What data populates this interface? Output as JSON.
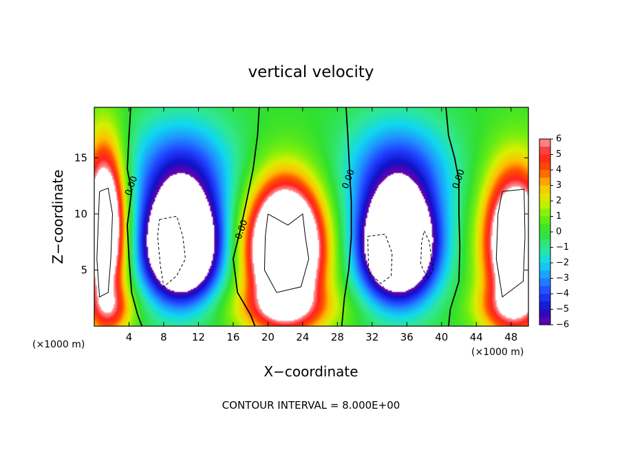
{
  "chart_data": {
    "type": "heatmap",
    "title": "vertical velocity",
    "xlabel": "X−coordinate",
    "ylabel": "Z−coordinate",
    "x_unit": "(×1000 m)",
    "x_unit_right": "(×1000 m)",
    "footer": "CONTOUR INTERVAL = 8.000E+00",
    "xlim": [
      0,
      50
    ],
    "ylim": [
      0,
      19.5
    ],
    "x_ticks": [
      4,
      8,
      12,
      16,
      20,
      24,
      28,
      32,
      36,
      40,
      44,
      48
    ],
    "x_tick_labels": [
      "4",
      "8",
      "12",
      "16",
      "20",
      "24",
      "28",
      "32",
      "36",
      "40",
      "44",
      "48"
    ],
    "y_ticks": [
      5,
      10,
      15
    ],
    "y_tick_labels": [
      "5",
      "10",
      "15"
    ],
    "colorbar": {
      "min": -6,
      "max": 6,
      "ticks": [
        6,
        5,
        4,
        3,
        2,
        1,
        0,
        -1,
        -2,
        -3,
        -4,
        -5,
        -6
      ],
      "tick_labels": [
        "6",
        "5",
        "4",
        "3",
        "2",
        "1",
        "0",
        "−1",
        "−2",
        "−3",
        "−4",
        "−5",
        "−6"
      ],
      "over_color": "#ffffff",
      "under_color": "#ffffff",
      "stops": [
        {
          "v": -6,
          "color": "#7000a8"
        },
        {
          "v": -5,
          "color": "#1010c8"
        },
        {
          "v": -4,
          "color": "#2040ff"
        },
        {
          "v": -3,
          "color": "#2090ff"
        },
        {
          "v": -2,
          "color": "#10d8f0"
        },
        {
          "v": -1,
          "color": "#30e890"
        },
        {
          "v": 0,
          "color": "#30e030"
        },
        {
          "v": 1,
          "color": "#70ee10"
        },
        {
          "v": 2,
          "color": "#d8f000"
        },
        {
          "v": 3,
          "color": "#ffc000"
        },
        {
          "v": 4,
          "color": "#ff5000"
        },
        {
          "v": 5,
          "color": "#ff2020"
        },
        {
          "v": 6,
          "color": "#ffa0a0"
        }
      ]
    },
    "contour_labels": [
      {
        "text": "0.00",
        "x": 4.3,
        "z": 12.5
      },
      {
        "text": "0.00",
        "x": 17.0,
        "z": 8.6
      },
      {
        "text": "0.00",
        "x": 29.3,
        "z": 13.1
      },
      {
        "text": "0.00",
        "x": 42.0,
        "z": 13.1
      }
    ],
    "cells": [
      {
        "x": 1.2,
        "z": 9.0,
        "sx": 1.7,
        "sz": 5.0,
        "a": 11
      },
      {
        "x": 2.0,
        "z": 1.5,
        "sx": 2.0,
        "sz": 1.5,
        "a": 3
      },
      {
        "x": 10.0,
        "z": 7.0,
        "sx": 3.0,
        "sz": 3.2,
        "a": -13
      },
      {
        "x": 10.0,
        "z": 13.5,
        "sx": 4.2,
        "sz": 3.5,
        "a": -4.5
      },
      {
        "x": 22.0,
        "z": 7.0,
        "sx": 3.0,
        "sz": 4.0,
        "a": 14
      },
      {
        "x": 22.0,
        "z": 1.5,
        "sx": 4.5,
        "sz": 1.5,
        "a": 3
      },
      {
        "x": 35.0,
        "z": 7.0,
        "sx": 3.0,
        "sz": 3.2,
        "a": -13
      },
      {
        "x": 35.0,
        "z": 13.5,
        "sx": 4.2,
        "sz": 3.5,
        "a": -4.5
      },
      {
        "x": 48.5,
        "z": 7.5,
        "sx": 2.5,
        "sz": 4.5,
        "a": 11
      },
      {
        "x": 48.0,
        "z": 1.5,
        "sx": 3.0,
        "sz": 1.5,
        "a": 3
      }
    ],
    "zero_contours": [
      [
        [
          4.2,
          19.5
        ],
        [
          4.0,
          17.0
        ],
        [
          3.8,
          14.0
        ],
        [
          4.3,
          12.0
        ],
        [
          3.8,
          9.0
        ],
        [
          4.0,
          6.0
        ],
        [
          4.3,
          3.0
        ],
        [
          5.0,
          1.0
        ],
        [
          5.5,
          0.0
        ]
      ],
      [
        [
          19.0,
          19.5
        ],
        [
          18.8,
          17.0
        ],
        [
          18.3,
          14.0
        ],
        [
          17.5,
          11.0
        ],
        [
          16.8,
          8.5
        ],
        [
          16.0,
          6.0
        ],
        [
          16.5,
          3.0
        ],
        [
          18.0,
          1.0
        ],
        [
          18.5,
          0.0
        ]
      ],
      [
        [
          29.0,
          19.5
        ],
        [
          29.2,
          17.0
        ],
        [
          29.4,
          14.0
        ],
        [
          29.6,
          11.0
        ],
        [
          29.6,
          8.0
        ],
        [
          29.3,
          5.0
        ],
        [
          28.8,
          2.5
        ],
        [
          28.5,
          0.0
        ]
      ],
      [
        [
          40.5,
          19.5
        ],
        [
          40.8,
          17.0
        ],
        [
          41.5,
          15.0
        ],
        [
          42.0,
          13.0
        ],
        [
          42.0,
          10.0
        ],
        [
          42.1,
          7.0
        ],
        [
          42.0,
          4.0
        ],
        [
          41.0,
          1.5
        ],
        [
          40.8,
          0.0
        ]
      ]
    ],
    "solid_contours": [
      [
        [
          0.6,
          12.0
        ],
        [
          1.6,
          12.3
        ],
        [
          2.1,
          10.0
        ],
        [
          1.9,
          6.0
        ],
        [
          1.6,
          3.0
        ],
        [
          0.6,
          2.6
        ],
        [
          0.3,
          6.0
        ],
        [
          0.6,
          12.0
        ]
      ],
      [
        [
          20.0,
          10.0
        ],
        [
          22.3,
          9.0
        ],
        [
          24.0,
          10.0
        ],
        [
          24.3,
          8.0
        ],
        [
          24.7,
          6.0
        ],
        [
          23.8,
          3.5
        ],
        [
          21.0,
          3.0
        ],
        [
          19.6,
          5.0
        ],
        [
          19.7,
          8.0
        ],
        [
          20.0,
          10.0
        ]
      ],
      [
        [
          47.0,
          12.0
        ],
        [
          49.5,
          12.2
        ],
        [
          49.6,
          8.0
        ],
        [
          49.4,
          4.0
        ],
        [
          47.0,
          2.6
        ],
        [
          46.3,
          6.0
        ],
        [
          46.5,
          10.0
        ],
        [
          47.0,
          12.0
        ]
      ]
    ],
    "dashed_contours": [
      [
        [
          7.5,
          9.5
        ],
        [
          9.5,
          9.8
        ],
        [
          10.2,
          8.0
        ],
        [
          10.5,
          6.0
        ],
        [
          9.5,
          4.5
        ],
        [
          8.0,
          3.5
        ],
        [
          7.6,
          5.5
        ],
        [
          7.3,
          8.0
        ],
        [
          7.5,
          9.5
        ]
      ],
      [
        [
          31.5,
          8.0
        ],
        [
          33.5,
          8.2
        ],
        [
          34.3,
          6.5
        ],
        [
          34.2,
          4.5
        ],
        [
          33.0,
          3.8
        ],
        [
          31.6,
          4.8
        ],
        [
          31.5,
          8.0
        ]
      ],
      [
        [
          38.0,
          8.5
        ],
        [
          38.6,
          7.5
        ],
        [
          39.0,
          5.0
        ],
        [
          38.4,
          4.2
        ],
        [
          37.6,
          5.5
        ],
        [
          37.7,
          7.5
        ],
        [
          38.0,
          8.5
        ]
      ]
    ]
  }
}
